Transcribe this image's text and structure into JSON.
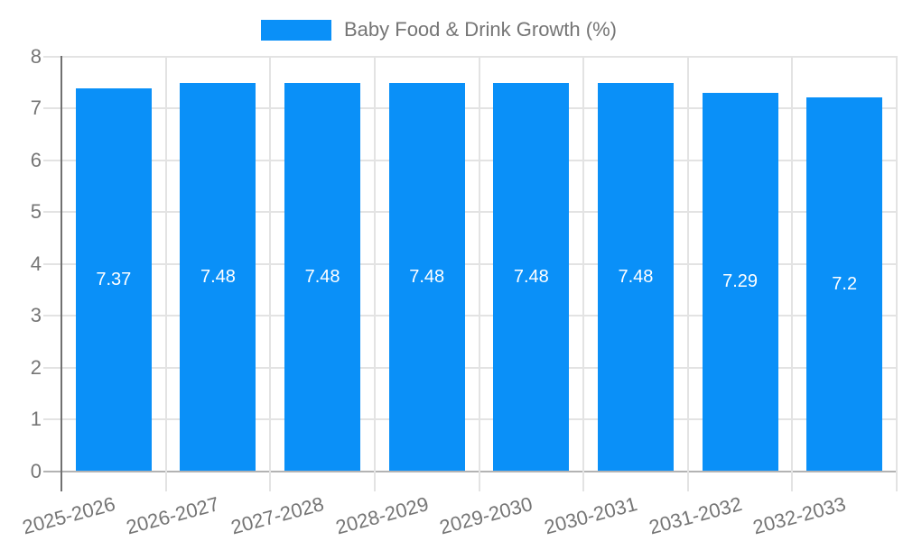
{
  "legend": {
    "label": "Baby Food & Drink Growth (%)"
  },
  "colors": {
    "background": "#FFFFFF",
    "bar": "#0A90F8",
    "axis_line": "#707070",
    "baseline": "#B3B3B3",
    "gridline": "#E3E3E3",
    "tick_text": "#757575",
    "value_label": "#FFFFFF"
  },
  "chart_data": {
    "type": "bar",
    "title": "Baby Food & Drink Growth (%)",
    "categories": [
      "2025-2026",
      "2026-2027",
      "2027-2028",
      "2028-2029",
      "2029-2030",
      "2030-2031",
      "2031-2032",
      "2032-2033"
    ],
    "values": [
      7.37,
      7.48,
      7.48,
      7.48,
      7.48,
      7.48,
      7.29,
      7.2
    ],
    "bar_labels": [
      "7.37",
      "7.48",
      "7.48",
      "7.48",
      "7.48",
      "7.48",
      "7.29",
      "7.2"
    ],
    "xlabel": "",
    "ylabel": "",
    "ylim": [
      0,
      8
    ],
    "yticks": [
      0,
      1,
      2,
      3,
      4,
      5,
      6,
      7,
      8
    ],
    "grid": true,
    "legend_position": "top",
    "x_tick_rotation_deg": -15
  }
}
